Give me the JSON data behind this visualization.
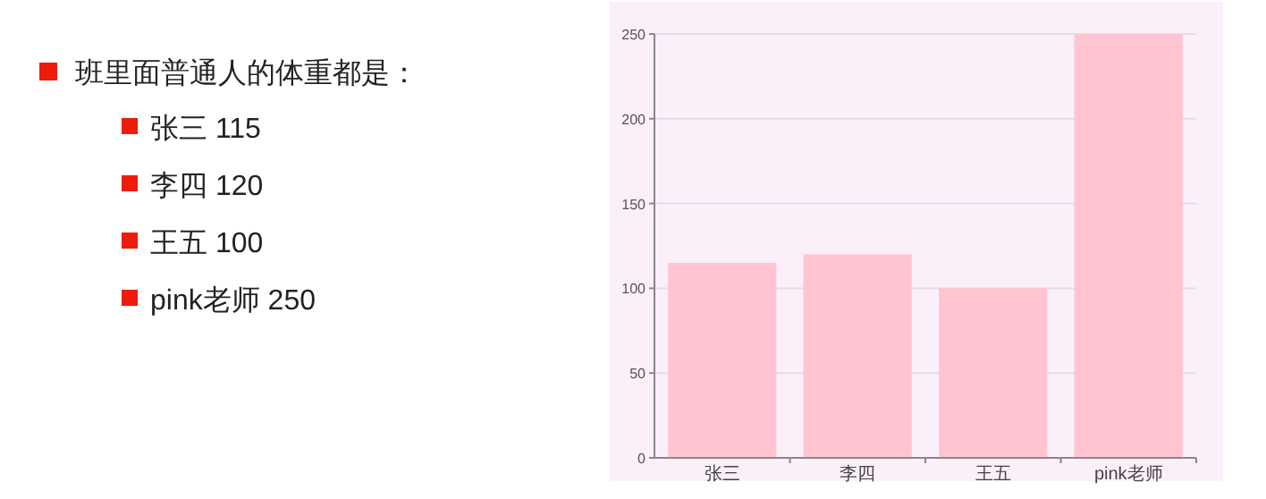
{
  "chart_data": {
    "type": "bar",
    "title": "班里面普通人的体重都是：",
    "annotations": [
      "张三 115",
      "李四 120",
      "王五 100",
      "pink老师  250"
    ],
    "categories": [
      "张三",
      "李四",
      "王五",
      "pink老师"
    ],
    "values": [
      115,
      120,
      100,
      250
    ],
    "color": "#ffc4d0",
    "ylim": [
      0,
      250
    ],
    "yticks": [
      0,
      50,
      100,
      150,
      200,
      250
    ],
    "grid": "y"
  }
}
